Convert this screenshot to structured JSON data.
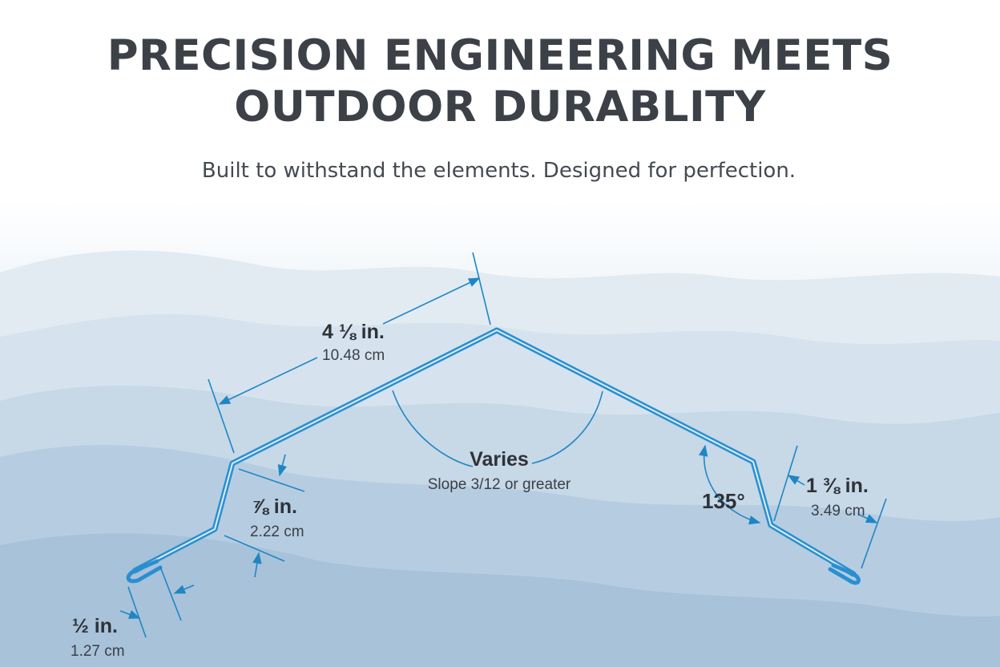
{
  "title": {
    "line1": "PRECISION ENGINEERING MEETS",
    "line2": "OUTDOOR DURABLITY"
  },
  "subtitle": "Built to withstand the elements. Designed for perfection.",
  "colors": {
    "profile": "#2a8fd0",
    "dimension": "#1f86c4",
    "heading": "#3c4148"
  },
  "dimensions": {
    "slope_run": {
      "imperial": "4 ⅛ in.",
      "metric": "10.48 cm"
    },
    "leg": {
      "imperial": "⅞ in.",
      "metric": "2.22 cm"
    },
    "hem": {
      "imperial": "½ in.",
      "metric": "1.27 cm"
    },
    "right_leg": {
      "imperial": "1 ⅜ in.",
      "metric": "3.49 cm"
    },
    "peak_angle": {
      "label": "Varies",
      "note": "Slope 3/12 or greater"
    },
    "side_angle": {
      "label": "135°"
    }
  }
}
